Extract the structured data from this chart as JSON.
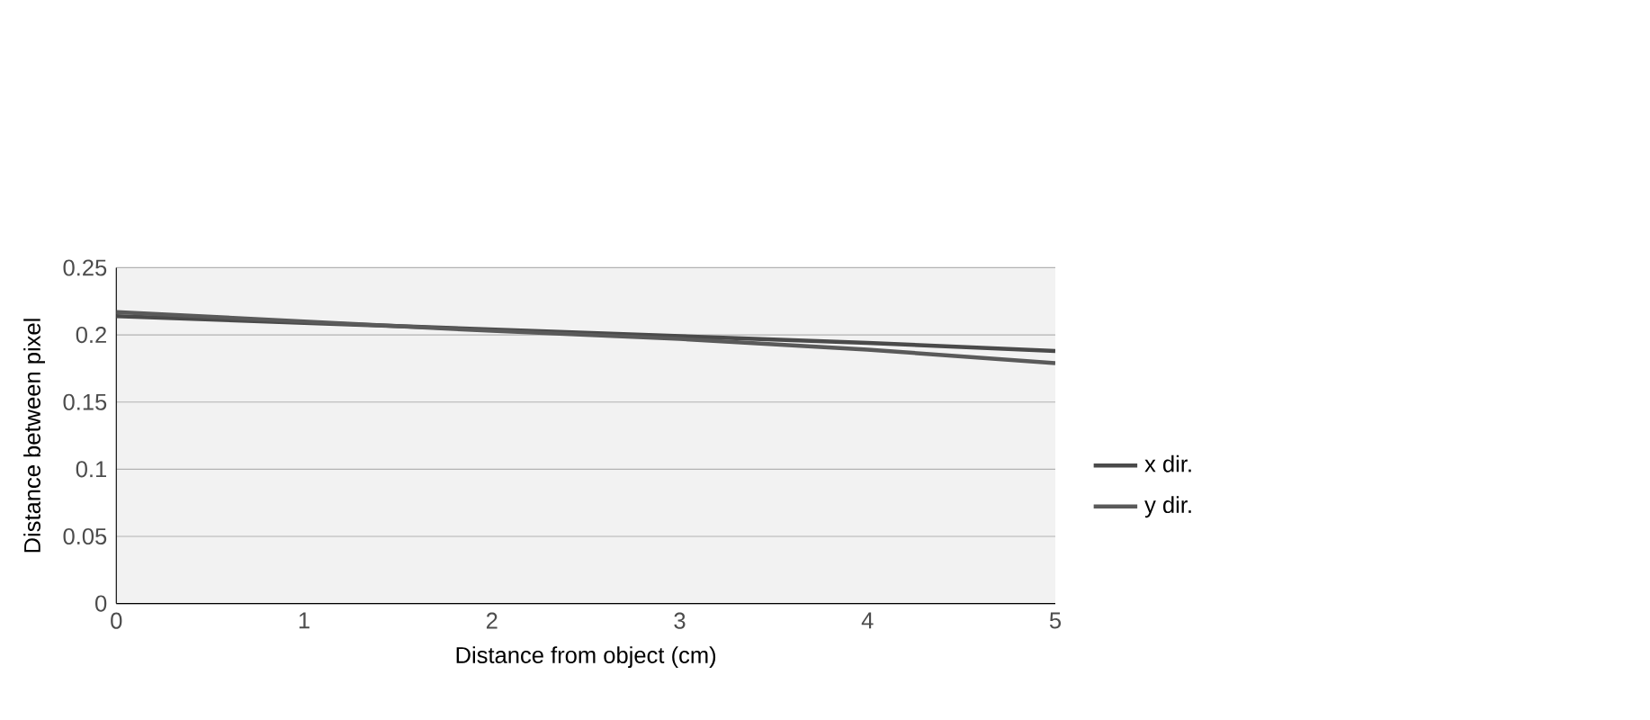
{
  "chart_data": {
    "type": "line",
    "xlabel": "Distance from object (cm)",
    "ylabel": "Distance between pixel",
    "x": [
      0,
      1,
      2,
      3,
      4,
      5
    ],
    "series": [
      {
        "name": "x dir.",
        "color": "#4a4a4a",
        "values": [
          0.214,
          0.209,
          0.204,
          0.199,
          0.194,
          0.188
        ]
      },
      {
        "name": "y dir.",
        "color": "#5a5a5a",
        "values": [
          0.217,
          0.21,
          0.203,
          0.197,
          0.189,
          0.179
        ]
      }
    ],
    "xlim": [
      0,
      5
    ],
    "xticks": [
      0,
      1,
      2,
      3,
      4,
      5
    ],
    "ylim": [
      0,
      0.25
    ],
    "yticks": [
      0,
      0.05,
      0.1,
      0.15,
      0.2,
      0.25
    ],
    "grid": "y",
    "legend": "right",
    "marker": "none",
    "line_style": "solid"
  }
}
